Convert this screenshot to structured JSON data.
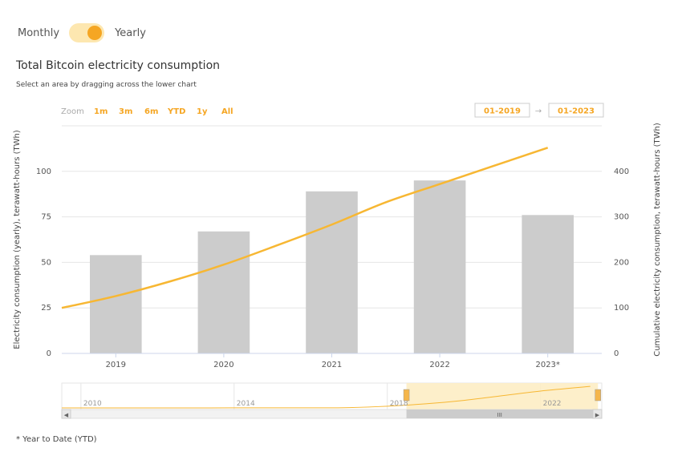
{
  "toggle": {
    "left_label": "Monthly",
    "right_label": "Yearly",
    "selected": "Yearly"
  },
  "title": "Total Bitcoin electricity consumption",
  "subtitle": "Select an area by dragging across the lower chart",
  "zoom": {
    "label": "Zoom",
    "options": [
      "1m",
      "3m",
      "6m",
      "YTD",
      "1y",
      "All"
    ]
  },
  "range": {
    "from": "01-2019",
    "arrow": "→",
    "to": "01-2023"
  },
  "footnote": "* Year to Date (YTD)",
  "colors": {
    "bar": "#cccccc",
    "line": "#f7b733",
    "accent": "#f5a623",
    "selection": "#fdedc4"
  },
  "chart_data": {
    "type": "bar+line",
    "categories": [
      "2019",
      "2020",
      "2021",
      "2022",
      "2023*"
    ],
    "series": [
      {
        "type": "bar",
        "axis": "left",
        "values": [
          54,
          67,
          89,
          95,
          76
        ]
      },
      {
        "type": "line",
        "axis": "right",
        "x": [
          2018.5,
          2019.0,
          2019.5,
          2020.0,
          2020.5,
          2021.0,
          2021.5,
          2022.0,
          2022.5,
          2023.0
        ],
        "values": [
          100,
          126,
          158,
          195,
          238,
          283,
          332,
          372,
          412,
          452
        ]
      }
    ],
    "ylabel": "Electricity consumption (yearly), terawatt-hours (TWh)",
    "y2label": "Cumulative electricity consumption, terawatt-hours (TWh)",
    "ylim": [
      0,
      125
    ],
    "y2lim": [
      0,
      500
    ],
    "yticks": [
      0,
      25,
      50,
      75,
      100
    ],
    "y2ticks": [
      0,
      100,
      200,
      300,
      400
    ],
    "grid": true,
    "navigator": {
      "ticks": [
        "2010",
        "2014",
        "2018",
        "2022"
      ],
      "xlim": [
        2009.5,
        2023.6
      ],
      "selection": [
        2018.5,
        2023.5
      ],
      "x": [
        2009.5,
        2012,
        2014,
        2016,
        2017,
        2018,
        2019,
        2020,
        2021,
        2022,
        2023.3
      ],
      "values": [
        0,
        0,
        0.5,
        1,
        3,
        15,
        35,
        65,
        105,
        145,
        185
      ],
      "scrollbar_grip": "III"
    }
  }
}
